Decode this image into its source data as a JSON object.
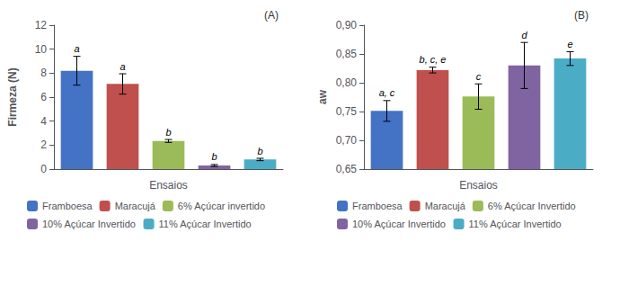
{
  "chart_data": [
    {
      "type": "bar",
      "title": "(A)",
      "xlabel": "Ensaios",
      "ylabel": "Firmeza (N)",
      "categories": [
        "Framboesa",
        "Maracujá",
        "6% Açúcar invertido",
        "10% Açúcar Invertido",
        "11% Açúcar Invertido"
      ],
      "values": [
        8.2,
        7.1,
        2.35,
        0.3,
        0.8
      ],
      "errors": [
        1.2,
        0.85,
        0.12,
        0.08,
        0.1
      ],
      "annotations": [
        "a",
        "a",
        "b",
        "b",
        "b"
      ],
      "colors": [
        "#4472C4",
        "#C0504D",
        "#9BBB59",
        "#8064A2",
        "#4BACC6"
      ],
      "ylim": [
        0,
        12
      ],
      "yticks": [
        0,
        2,
        4,
        6,
        8,
        10,
        12
      ],
      "grid": false,
      "legend": "bottom",
      "tick_labels": "y"
    },
    {
      "type": "bar",
      "title": "(B)",
      "xlabel": "Ensaios",
      "ylabel": "aw",
      "categories": [
        "Framboesa",
        "Maracujá",
        "6% Açúcar Invertido",
        "10% Açúcar Invertido",
        "11% Açúcar Invertido"
      ],
      "values": [
        0.751,
        0.822,
        0.776,
        0.83,
        0.842
      ],
      "errors": [
        0.018,
        0.005,
        0.022,
        0.04,
        0.012
      ],
      "annotations": [
        "a, c",
        "b, c, e",
        "c",
        "d",
        "e"
      ],
      "colors": [
        "#4472C4",
        "#C0504D",
        "#9BBB59",
        "#8064A2",
        "#4BACC6"
      ],
      "ylim": [
        0.65,
        0.9
      ],
      "yticks": [
        {
          "value": 0.65,
          "label": "0,65"
        },
        {
          "value": 0.7,
          "label": "0,70"
        },
        {
          "value": 0.75,
          "label": "0,75"
        },
        {
          "value": 0.8,
          "label": "0,80"
        },
        {
          "value": 0.85,
          "label": "0,85"
        },
        {
          "value": 0.9,
          "label": "0,90"
        }
      ],
      "grid": false,
      "legend": "bottom",
      "tick_labels": "y"
    }
  ]
}
